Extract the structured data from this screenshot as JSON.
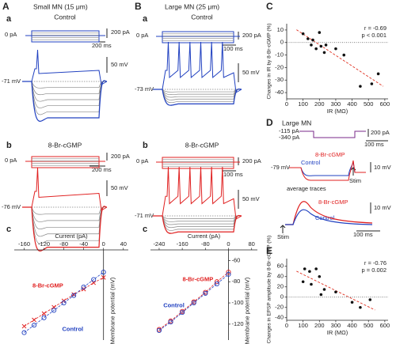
{
  "panel_A": {
    "letter": "A",
    "title": "Small MN (15 μm)",
    "a": {
      "letter": "a",
      "condition": "Control",
      "zero": "0 pA",
      "current_scale": "200 pA",
      "time_scale": "200 ms",
      "voltage_scale": "50 mV",
      "rest": "-71 mV"
    },
    "b": {
      "letter": "b",
      "condition": "8-Br-cGMP",
      "zero": "0 pA",
      "current_scale": "200 pA",
      "time_scale": "200 ms",
      "voltage_scale": "50 mV",
      "rest": "-76 mV"
    },
    "c_letter": "c"
  },
  "panel_B": {
    "letter": "B",
    "title": "Large MN (25 μm)",
    "a": {
      "letter": "a",
      "condition": "Control",
      "zero": "0 pA",
      "current_scale": "200 pA",
      "time_scale": "100 ms",
      "voltage_scale": "50 mV",
      "rest": "-73 mV"
    },
    "b": {
      "letter": "b",
      "condition": "8-Br-cGMP",
      "zero": "0 pA",
      "current_scale": "200 pA",
      "time_scale": "100 ms",
      "voltage_scale": "50 mV",
      "rest": "-71 mV"
    },
    "c_letter": "c"
  },
  "panel_C": {
    "letter": "C"
  },
  "panel_D": {
    "letter": "D",
    "title": "Large MN",
    "current_low": "-115 pA",
    "current_high": "-340 pA",
    "current_scale": "200 pA",
    "time_scale_top": "100 ms",
    "rest": "-79 mV",
    "drug": "8-Br-cGMP",
    "control": "Control",
    "voltage_scale_top": "10 mV",
    "stim_top": "Stim",
    "average": "average traces",
    "drug_avg": "8-Br-cGMP",
    "control_avg": "Control",
    "voltage_scale_avg": "10 mV",
    "stim_avg": "Stim",
    "time_scale_avg": "100 ms"
  },
  "panel_E": {
    "letter": "E"
  },
  "chart_data": [
    {
      "type": "line",
      "xlabel": "Current (pA)",
      "ylabel": "Membrane potential (mV)",
      "x": [
        -160,
        -140,
        -120,
        -100,
        -80,
        -60,
        -40,
        -20,
        0
      ],
      "series": [
        {
          "name": "8-Br-cGMP",
          "color": "#e02020",
          "marker": "x",
          "values": [
            -122,
            -116,
            -110,
            -104,
            -98,
            -92,
            -87,
            -81,
            -76
          ]
        },
        {
          "name": "Control",
          "color": "#2040c0",
          "marker": "o",
          "values": [
            -128,
            -121,
            -114,
            -107,
            -100,
            -93,
            -85,
            -78,
            -71
          ]
        }
      ],
      "xlim": [
        -180,
        50
      ],
      "ylim": [
        -135,
        -50
      ],
      "xticks": [
        -160,
        -120,
        -80,
        -40,
        0,
        40
      ],
      "yticks": []
    },
    {
      "type": "line",
      "xlabel": "Current (pA)",
      "ylabel": "Membrane potential (mV)",
      "x": [
        -240,
        -200,
        -160,
        -120,
        -80,
        -40,
        0
      ],
      "series": [
        {
          "name": "8-Br-cGMP",
          "color": "#e02020",
          "marker": "o",
          "values": [
            -125,
            -117,
            -108,
            -99,
            -90,
            -80,
            -71
          ]
        },
        {
          "name": "Control",
          "color": "#2040c0",
          "marker": "o",
          "values": [
            -126,
            -118,
            -109,
            -100,
            -91,
            -82,
            -73
          ]
        }
      ],
      "xlim": [
        -270,
        100
      ],
      "ylim": [
        -135,
        -50
      ],
      "xticks": [
        -240,
        -160,
        -80,
        0,
        80
      ],
      "yticks": [
        -60,
        -80,
        -100,
        -120
      ]
    },
    {
      "type": "scatter",
      "xlabel": "IR (MΩ)",
      "ylabel": "Changes in IR by 8-Br-cGMP (%)",
      "annotations": [
        "r = -0.69",
        "p < 0.001"
      ],
      "x": [
        100,
        130,
        150,
        160,
        180,
        200,
        210,
        230,
        240,
        300,
        350,
        450,
        520,
        560
      ],
      "values": [
        7,
        3,
        -2,
        2,
        -5,
        8,
        -3,
        -8,
        -2,
        -5,
        -10,
        -35,
        -33,
        -25
      ],
      "color": "#111",
      "trend_line_color": "#e03020",
      "xlim": [
        0,
        620
      ],
      "ylim": [
        -45,
        15
      ],
      "xticks": [
        0,
        100,
        200,
        300,
        400,
        500,
        600
      ],
      "yticks": [
        10,
        0,
        -10,
        -20,
        -30,
        -40
      ]
    },
    {
      "type": "scatter",
      "xlabel": "IR (MΩ)",
      "ylabel": "Changes in EPSP amplitude by 8-Br-cGMP (%)",
      "annotations": [
        "r = -0.76",
        "p = 0.002"
      ],
      "x": [
        100,
        110,
        140,
        150,
        180,
        200,
        210,
        230,
        300,
        400,
        450,
        510
      ],
      "values": [
        30,
        55,
        50,
        25,
        55,
        40,
        5,
        15,
        10,
        -10,
        -20,
        -5
      ],
      "color": "#111",
      "trend_line_color": "#e03020",
      "xlim": [
        0,
        620
      ],
      "ylim": [
        -45,
        75
      ],
      "xticks": [
        0,
        100,
        200,
        300,
        400,
        500,
        600
      ],
      "yticks": [
        60,
        40,
        20,
        0,
        -20,
        -40
      ]
    }
  ]
}
